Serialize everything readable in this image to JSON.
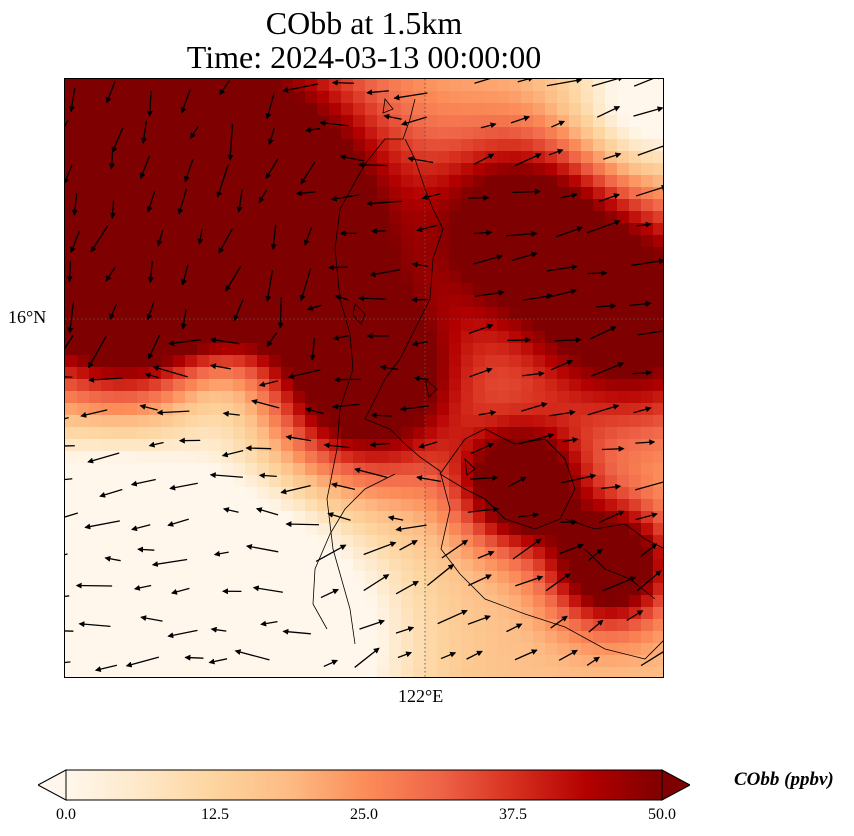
{
  "figure": {
    "title_line1": "CObb at 1.5km",
    "title_line2": "Time: 2024-03-13 00:00:00"
  },
  "map": {
    "projection": "plate carree",
    "latitude_tick": "16°N",
    "longitude_tick": "122°E",
    "gridlines": "dotted",
    "coastline_color": "#000000",
    "wind_vector_color": "#000000"
  },
  "colorbar": {
    "label": "CObb (ppbv)",
    "colormap": "OrRd",
    "min": 0.0,
    "max": 50.0,
    "extend": "both",
    "ticks": [
      "0.0",
      "12.5",
      "25.0",
      "37.5",
      "50.0"
    ],
    "tick_values": [
      0.0,
      12.5,
      25.0,
      37.5,
      50.0
    ],
    "stops": [
      "#fff7ec",
      "#fee8c8",
      "#fdd49e",
      "#fdbb84",
      "#fc8d59",
      "#ef6548",
      "#d7301f",
      "#b30000",
      "#7f0000"
    ]
  }
}
